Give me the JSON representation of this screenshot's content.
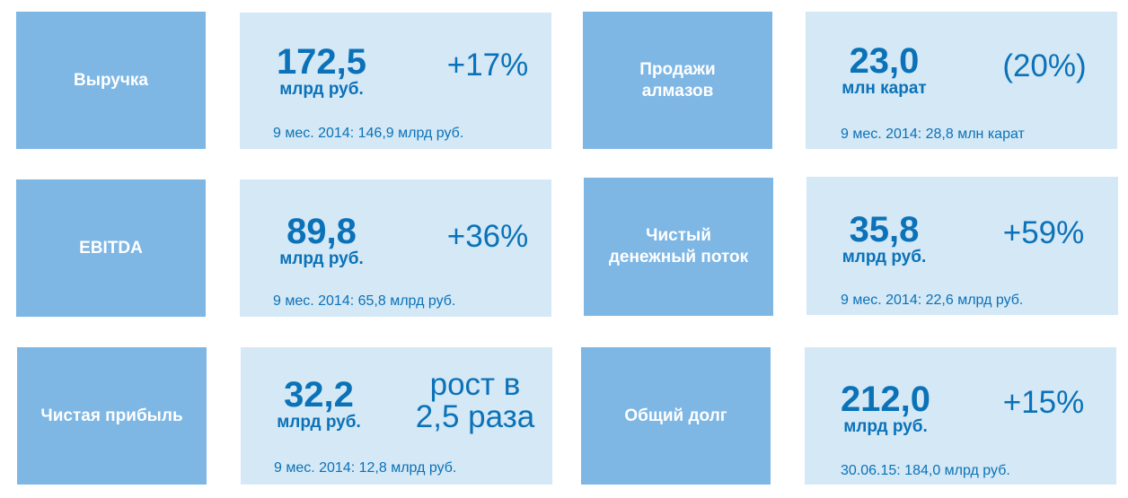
{
  "metrics": [
    {
      "label_lines": [
        "Выручка"
      ],
      "value": "172,5",
      "unit": "млрд руб.",
      "change_lines": [
        "+17%"
      ],
      "note": "9 мес. 2014: 146,9 млрд руб."
    },
    {
      "label_lines": [
        "Продажи",
        "алмазов"
      ],
      "value": "23,0",
      "unit": "млн карат",
      "change_lines": [
        "(20%)"
      ],
      "note": "9 мес. 2014: 28,8 млн карат"
    },
    {
      "label_lines": [
        "EBITDA"
      ],
      "value": "89,8",
      "unit": "млрд руб.",
      "change_lines": [
        "+36%"
      ],
      "note": "9 мес. 2014: 65,8 млрд руб."
    },
    {
      "label_lines": [
        "Чистый",
        "денежный поток"
      ],
      "value": "35,8",
      "unit": "млрд руб.",
      "change_lines": [
        "+59%"
      ],
      "note": "9 мес. 2014: 22,6 млрд руб."
    },
    {
      "label_lines": [
        "Чистая прибыль"
      ],
      "value": "32,2",
      "unit": "млрд руб.",
      "change_lines": [
        "рост в",
        "2,5 раза"
      ],
      "note": "9 мес. 2014: 12,8 млрд руб."
    },
    {
      "label_lines": [
        "Общий долг"
      ],
      "value": "212,0",
      "unit": "млрд руб.",
      "change_lines": [
        "+15%"
      ],
      "note": "30.06.15: 184,0 млрд руб."
    }
  ],
  "colors": {
    "label_bg": "#7eb6e4",
    "value_bg": "#d4e8f6",
    "accent_text": "#0b72b8"
  }
}
